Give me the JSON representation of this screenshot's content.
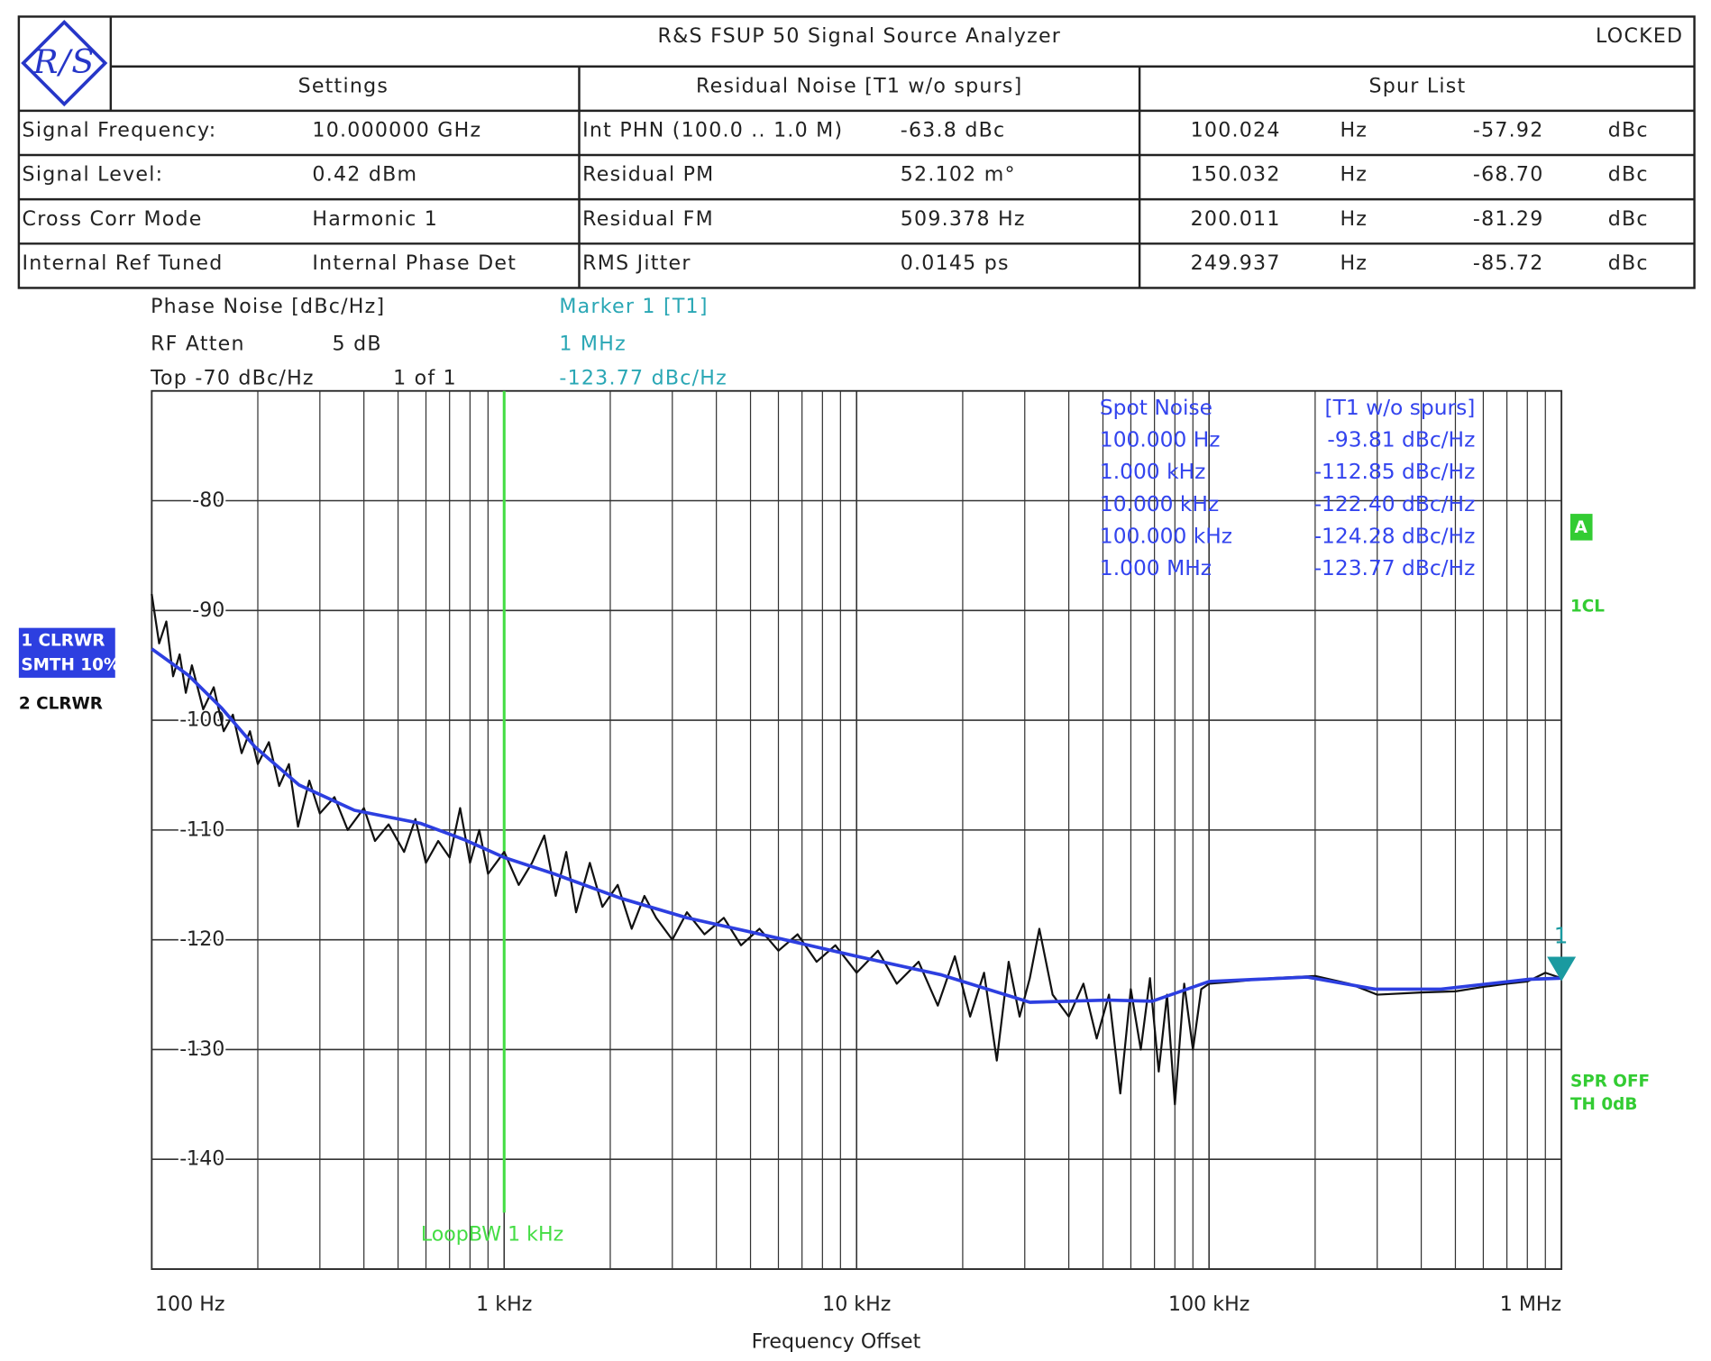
{
  "header": {
    "logo": "R/S",
    "title": "R&S FSUP 50 Signal Source Analyzer",
    "status": "LOCKED"
  },
  "table": {
    "columns": [
      "Settings",
      "Residual Noise [T1 w/o spurs]",
      "Spur List"
    ],
    "settings": [
      [
        "Signal Frequency:",
        "10.000000 GHz"
      ],
      [
        "Signal Level:",
        "0.42 dBm"
      ],
      [
        "Cross Corr Mode",
        "Harmonic 1"
      ],
      [
        "Internal Ref Tuned",
        "Internal Phase Det"
      ]
    ],
    "residual": [
      [
        "Int PHN (100.0 .. 1.0 M)",
        "-63.8 dBc"
      ],
      [
        "Residual PM",
        "52.102 m°"
      ],
      [
        "Residual FM",
        "509.378 Hz"
      ],
      [
        "RMS Jitter",
        "0.0145 ps"
      ]
    ],
    "spurs": [
      [
        "100.024",
        "Hz",
        "-57.92",
        "dBc"
      ],
      [
        "150.032",
        "Hz",
        "-68.70",
        "dBc"
      ],
      [
        "200.011",
        "Hz",
        "-81.29",
        "dBc"
      ],
      [
        "249.937",
        "Hz",
        "-85.72",
        "dBc"
      ]
    ]
  },
  "info": {
    "measure": "Phase Noise [dBc/Hz]",
    "atten_label": "RF Atten",
    "atten_value": "5 dB",
    "top": "Top -70 dBc/Hz",
    "count": "1 of 1"
  },
  "marker_info": [
    "Marker 1 [T1]",
    "1 MHz",
    "-123.77 dBc/Hz"
  ],
  "spot_noise": {
    "header": [
      "Spot Noise",
      "[T1 w/o spurs]"
    ],
    "rows": [
      [
        "100.000 Hz",
        "-93.81 dBc/Hz"
      ],
      [
        "1.000 kHz",
        "-112.85 dBc/Hz"
      ],
      [
        "10.000 kHz",
        "-122.40 dBc/Hz"
      ],
      [
        "100.000 kHz",
        "-124.28 dBc/Hz"
      ],
      [
        "1.000 MHz",
        "-123.77 dBc/Hz"
      ]
    ]
  },
  "chart_data": {
    "type": "line",
    "xlabel": "Frequency Offset",
    "log_x": true,
    "grid": true,
    "xlim": [
      100,
      1000000
    ],
    "ylim": [
      -150,
      -70
    ],
    "xticks": [
      {
        "value": 100,
        "label": "100 Hz"
      },
      {
        "value": 1000,
        "label": "1 kHz"
      },
      {
        "value": 10000,
        "label": "10 kHz"
      },
      {
        "value": 100000,
        "label": "100 kHz"
      },
      {
        "value": 1000000,
        "label": "1 MHz"
      }
    ],
    "xticks_minor": [
      200,
      300,
      400,
      500,
      600,
      700,
      800,
      900,
      2000,
      3000,
      4000,
      5000,
      6000,
      7000,
      8000,
      9000,
      20000,
      30000,
      40000,
      50000,
      60000,
      70000,
      80000,
      90000,
      200000,
      300000,
      400000,
      500000,
      600000,
      700000,
      800000,
      900000
    ],
    "yticks": [
      -80,
      -90,
      -100,
      -110,
      -120,
      -130,
      -140
    ],
    "smoothing": "SMTH 10%",
    "status_labels": [
      "A",
      "1CL",
      "SPR OFF",
      "TH 0dB"
    ],
    "loop_bw": {
      "x": 1000,
      "label": "LoopBW 1 kHz"
    },
    "marker": {
      "x": 1000000,
      "y": -123.77,
      "label": "1"
    },
    "series": [
      {
        "name": "2 CLRWR",
        "color": "#111111",
        "x": [
          100,
          105,
          110,
          115,
          120,
          125,
          130,
          140,
          150,
          160,
          170,
          180,
          190,
          200,
          215,
          230,
          245,
          260,
          280,
          300,
          330,
          360,
          400,
          430,
          470,
          520,
          560,
          600,
          650,
          700,
          750,
          800,
          850,
          900,
          1000,
          1100,
          1200,
          1300,
          1400,
          1500,
          1600,
          1750,
          1900,
          2100,
          2300,
          2500,
          2700,
          3000,
          3300,
          3700,
          4200,
          4700,
          5300,
          6000,
          6800,
          7700,
          8700,
          10000,
          11500,
          13000,
          15000,
          17000,
          19000,
          21000,
          23000,
          25000,
          27000,
          29000,
          31000,
          33000,
          36000,
          40000,
          44000,
          48000,
          52000,
          56000,
          60000,
          64000,
          68000,
          72000,
          76000,
          80000,
          85000,
          90000,
          95000,
          100000,
          120000,
          150000,
          200000,
          250000,
          300000,
          400000,
          500000,
          600000,
          700000,
          800000,
          900000,
          1000000
        ],
        "values": [
          -88.5,
          -93,
          -91,
          -96,
          -94,
          -97.5,
          -95,
          -99,
          -97,
          -101,
          -99.5,
          -103,
          -101,
          -104,
          -102,
          -106,
          -104,
          -109.7,
          -105.5,
          -108.5,
          -107,
          -110,
          -108,
          -111,
          -109.5,
          -112,
          -109,
          -113,
          -111,
          -112.5,
          -108,
          -113,
          -110,
          -114,
          -112,
          -115,
          -113,
          -110.5,
          -116,
          -112,
          -117.5,
          -113,
          -117,
          -115,
          -119,
          -116,
          -118,
          -120,
          -117.5,
          -119.5,
          -118,
          -120.5,
          -119,
          -121,
          -119.5,
          -122,
          -120.5,
          -123,
          -121,
          -124,
          -122,
          -126,
          -121.5,
          -127,
          -123,
          -131,
          -122,
          -127,
          -123.5,
          -119,
          -125,
          -127,
          -124,
          -129,
          -125,
          -134,
          -124.5,
          -130,
          -123.5,
          -132,
          -125,
          -135,
          -124,
          -130,
          -124.5,
          -124,
          -123.8,
          -123.5,
          -123.3,
          -124,
          -125,
          -124.8,
          -124.7,
          -124.3,
          -124,
          -123.8,
          -123,
          -123.5
        ]
      },
      {
        "name": "1 CLRWR",
        "color": "#2d3fe0",
        "x": [
          100,
          127,
          158,
          196,
          262,
          376,
          580,
          773,
          1000,
          1385,
          2136,
          3300,
          5880,
          10000,
          17400,
          31000,
          51600,
          69000,
          100000,
          190000,
          296000,
          455000,
          810000,
          1000000
        ],
        "values": [
          -93.5,
          -95.9,
          -98.9,
          -102.4,
          -105.9,
          -108.2,
          -109.4,
          -110.9,
          -112.5,
          -114,
          -116.2,
          -118,
          -119.8,
          -121.5,
          -123.2,
          -125.7,
          -125.5,
          -125.6,
          -123.8,
          -123.4,
          -124.5,
          -124.5,
          -123.6,
          -123.5
        ]
      }
    ]
  }
}
